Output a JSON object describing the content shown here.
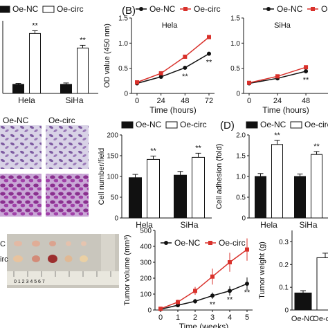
{
  "colors": {
    "nc": "#111111",
    "circ": "#d9312b",
    "bar_nc": "#111111",
    "bar_circ": "#ffffff",
    "stain": "#7a3a8a"
  },
  "legend": {
    "nc": "Oe-NC",
    "circ": "Oe-circ"
  },
  "panel_labels": {
    "b": "(B)",
    "d": "(D)"
  },
  "sig": "**",
  "photo_labels": {
    "row1": "C",
    "row2": "irc",
    "ruler": "0 1 2 3 4 5 6 7"
  },
  "chart_data": [
    {
      "id": "A",
      "type": "bar",
      "categories": [
        "Hela",
        "SiHa"
      ],
      "series": [
        {
          "name": "Oe-NC",
          "values": [
            1.0,
            1.0
          ]
        },
        {
          "name": "Oe-circ",
          "values": [
            6.6,
            5.0
          ]
        }
      ],
      "errors": [
        [
          0.1,
          0.15
        ],
        [
          0.3,
          0.3
        ]
      ],
      "ylim": [
        0,
        8
      ],
      "sig": [
        false,
        true
      ],
      "legend": "top"
    },
    {
      "id": "B1",
      "type": "line",
      "title": "Hela",
      "x": [
        0,
        24,
        48,
        72
      ],
      "xlabel": "Time (hours)",
      "ylabel": "OD value (450 nm)",
      "xticks": [
        "0",
        "24",
        "48",
        "72"
      ],
      "yticks": [
        "0",
        "0.5",
        "1.0",
        "1.5"
      ],
      "ylim": [
        0,
        1.5
      ],
      "series": [
        {
          "name": "Oe-NC",
          "values": [
            0.2,
            0.33,
            0.51,
            0.79
          ]
        },
        {
          "name": "Oe-circ",
          "values": [
            0.22,
            0.4,
            0.73,
            1.12
          ]
        }
      ],
      "sig_points": [
        2,
        3
      ],
      "legend": "top"
    },
    {
      "id": "B2",
      "type": "line",
      "title": "SiHa",
      "x": [
        0,
        24,
        48
      ],
      "xlabel": "Time (hours)",
      "xticks": [
        "0",
        "24",
        "48"
      ],
      "yticks": [
        "0",
        "0.5",
        "1.0",
        "1.5"
      ],
      "ylim": [
        0,
        1.5
      ],
      "series": [
        {
          "name": "Oe-NC",
          "values": [
            0.2,
            0.3,
            0.44
          ]
        },
        {
          "name": "Oe-circ",
          "values": [
            0.21,
            0.34,
            0.52
          ]
        }
      ],
      "sig_points": [
        2
      ],
      "legend": "top"
    },
    {
      "id": "C",
      "type": "bar",
      "categories": [
        "Hela",
        "SiHa"
      ],
      "ylabel": "Cell number/field",
      "yticks": [
        "0",
        "50",
        "100",
        "150",
        "200"
      ],
      "ylim": [
        0,
        200
      ],
      "series": [
        {
          "name": "Oe-NC",
          "values": [
            97,
            103
          ]
        },
        {
          "name": "Oe-circ",
          "values": [
            141,
            146
          ]
        }
      ],
      "errors": [
        [
          8,
          9
        ],
        [
          8,
          10
        ]
      ],
      "legend": "top"
    },
    {
      "id": "D",
      "type": "bar",
      "categories": [
        "Hela",
        "SiHa"
      ],
      "ylabel": "Cell adhesion (fold)",
      "yticks": [
        "0",
        "0.5",
        "1.0",
        "1.5",
        "2.0"
      ],
      "ylim": [
        0,
        2.0
      ],
      "series": [
        {
          "name": "Oe-NC",
          "values": [
            1.0,
            1.0
          ]
        },
        {
          "name": "Oe-circ",
          "values": [
            1.77,
            1.53
          ]
        }
      ],
      "errors": [
        [
          0.07,
          0.06
        ],
        [
          0.1,
          0.07
        ]
      ],
      "legend": "top"
    },
    {
      "id": "E",
      "type": "line",
      "xlabel": "Time (weeks)",
      "ylabel": "Tumor volume (mm³)",
      "x": [
        0,
        1,
        2,
        3,
        4,
        5
      ],
      "xticks": [
        "0",
        "1",
        "2",
        "3",
        "4",
        "5"
      ],
      "yticks": [
        "0",
        "100",
        "200",
        "300",
        "400",
        "500"
      ],
      "ylim": [
        0,
        500
      ],
      "series": [
        {
          "name": "Oe-NC",
          "values": [
            5,
            30,
            55,
            90,
            120,
            165
          ]
        },
        {
          "name": "Oe-circ",
          "values": [
            8,
            50,
            120,
            210,
            300,
            380
          ]
        }
      ],
      "errors": [
        [
          5,
          10,
          15,
          20,
          30,
          40
        ],
        [
          5,
          15,
          25,
          50,
          60,
          70
        ]
      ],
      "sig_points": [
        3,
        4,
        5
      ],
      "legend": "top"
    },
    {
      "id": "F",
      "type": "bar",
      "categories": [
        "Oe-NC",
        "Oe-circ"
      ],
      "ylabel": "Tumor weight (g)",
      "yticks": [
        "0",
        "0.1",
        "0.2",
        "0.3"
      ],
      "ylim": [
        0,
        0.35
      ],
      "values": [
        0.075,
        0.23
      ],
      "errors": [
        0.01,
        0.02
      ]
    }
  ]
}
